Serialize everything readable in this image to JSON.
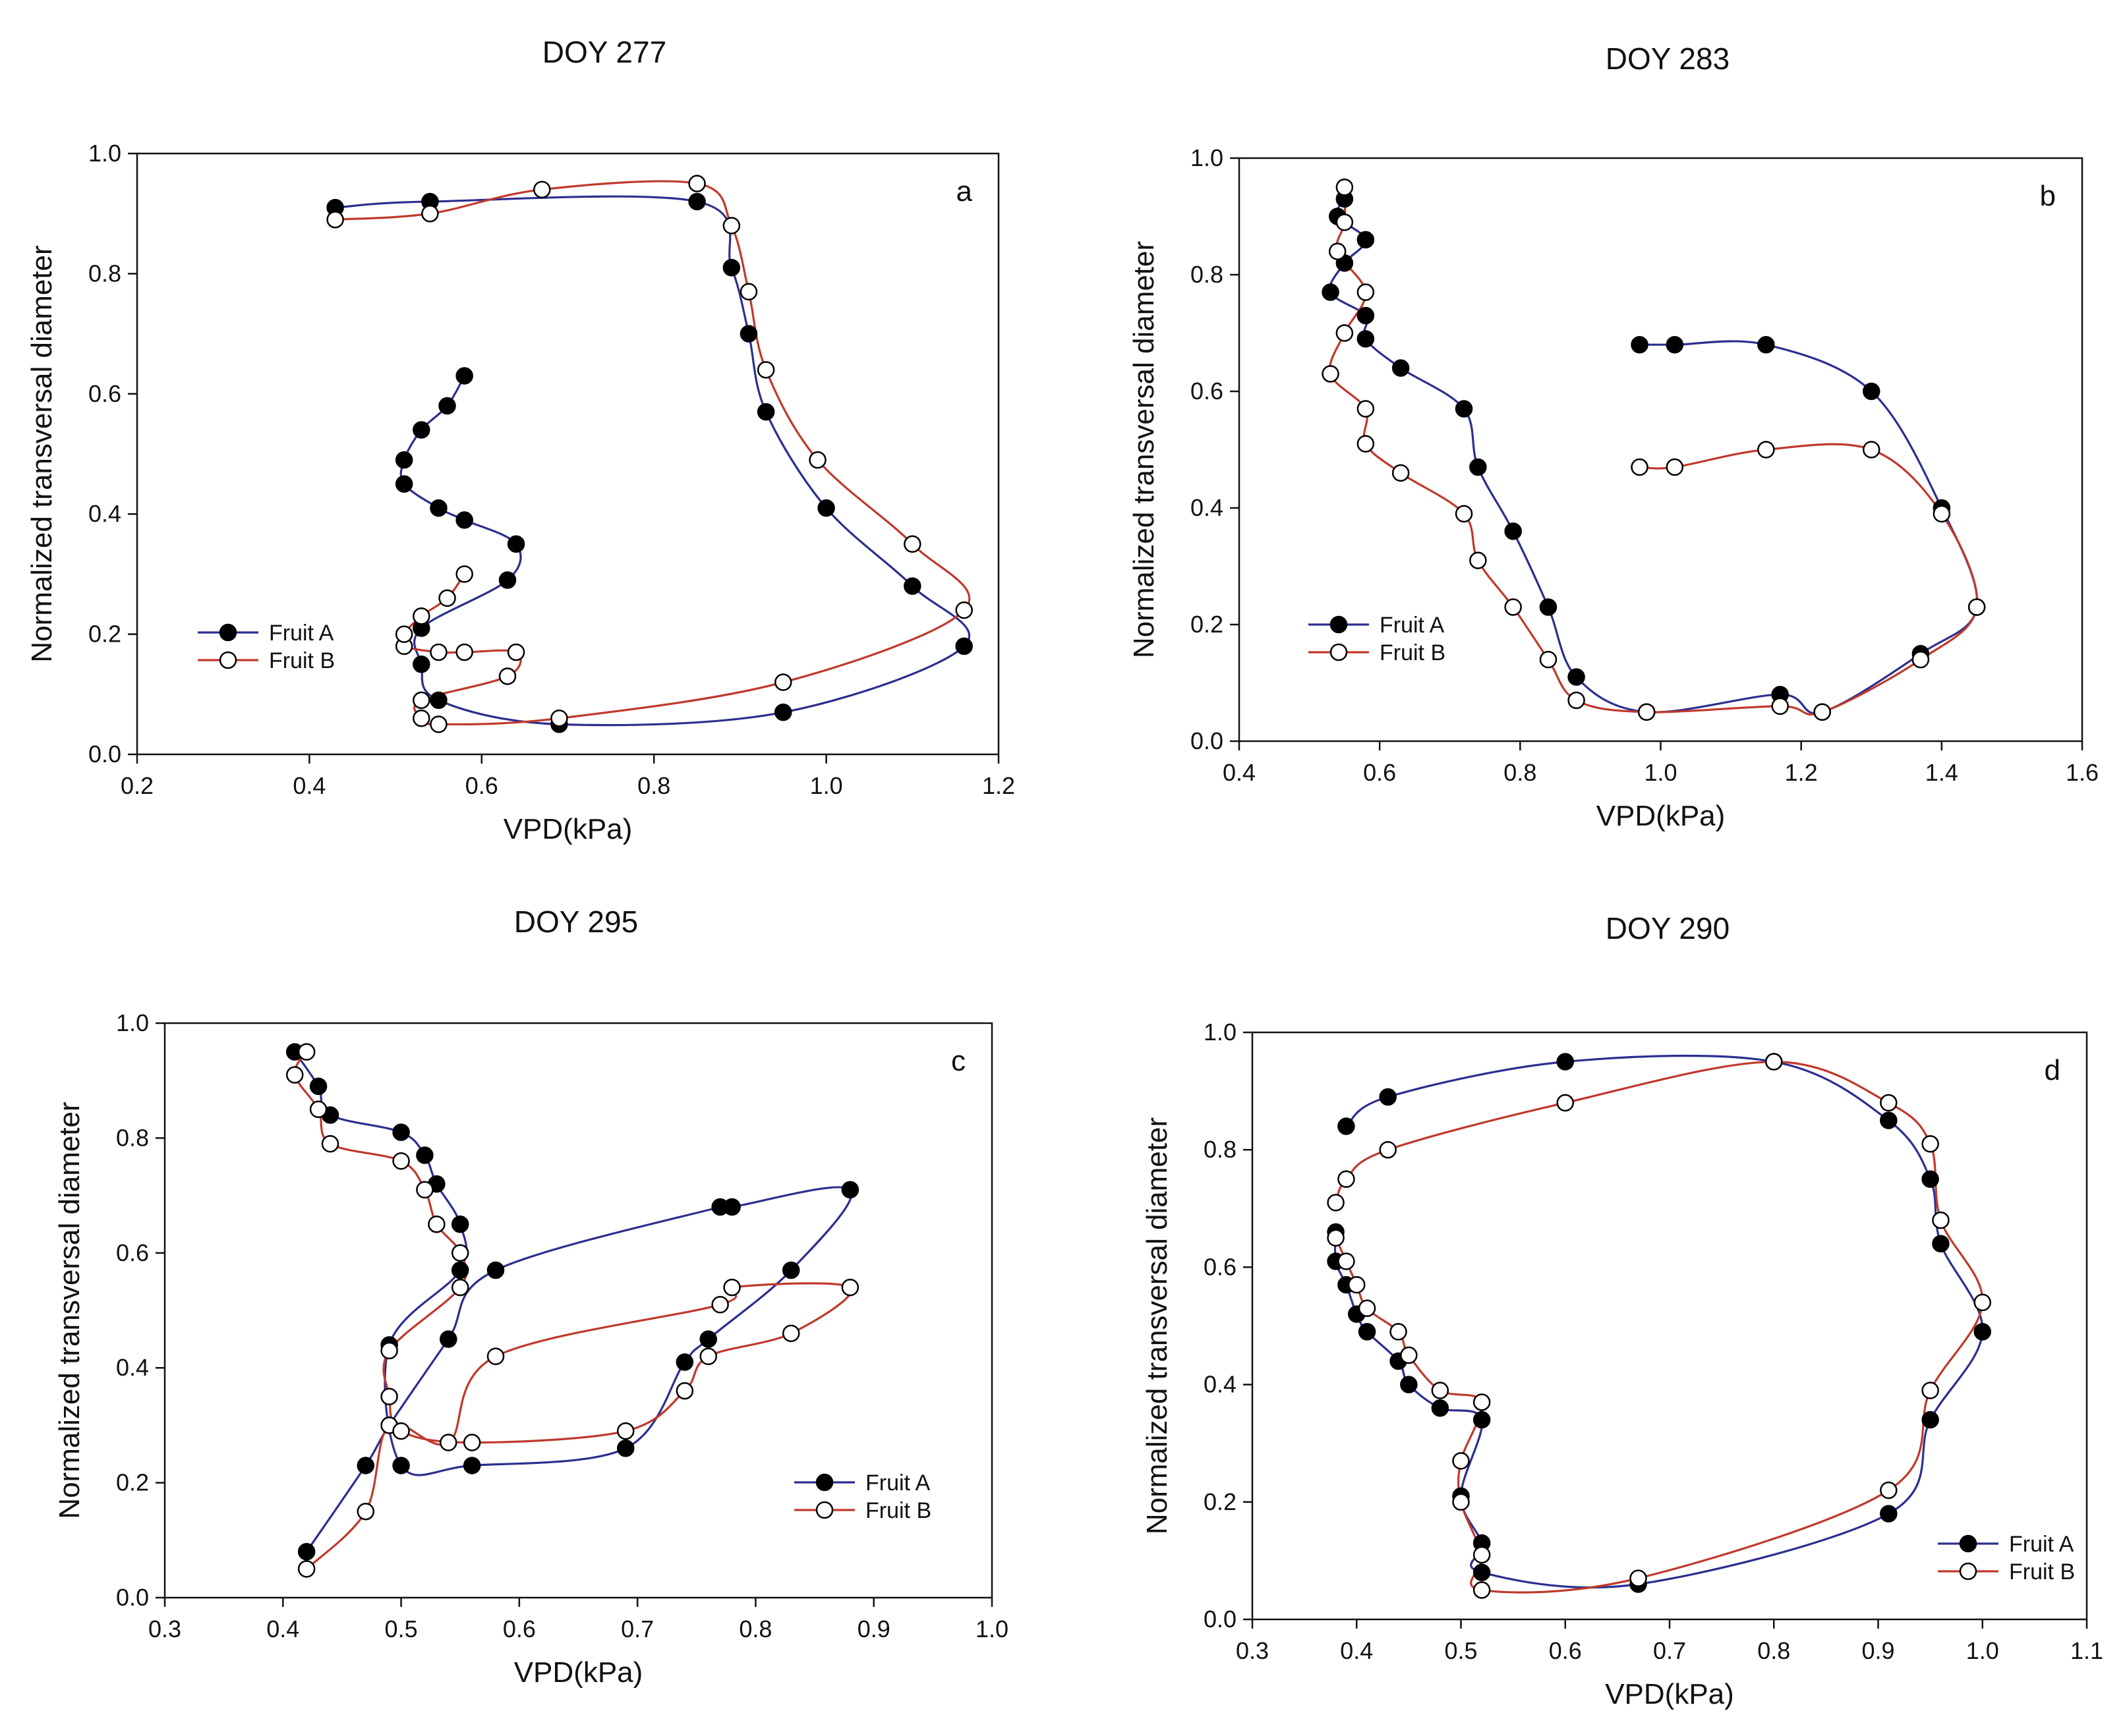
{
  "chart_data": [
    {
      "type": "line",
      "panel": "a",
      "title": "DOY 277",
      "xlabel": "VPD(kPa)",
      "ylabel": "Normalized transversal diameter",
      "xlim": [
        0.2,
        1.2
      ],
      "ylim": [
        0.0,
        1.0
      ],
      "xticks": [
        "0.2",
        "0.4",
        "0.6",
        "0.8",
        "1.0",
        "1.2"
      ],
      "yticks": [
        "0.0",
        "0.2",
        "0.4",
        "0.6",
        "0.8",
        "1.0"
      ],
      "legend_position": "left",
      "series": [
        {
          "name": "Fruit A",
          "color": "#2b2f8f",
          "marker": "filled",
          "x": [
            0.43,
            0.54,
            0.85,
            0.89,
            0.91,
            0.93,
            1.0,
            1.1,
            1.16,
            0.95,
            0.69,
            0.55,
            0.53,
            0.53,
            0.63,
            0.64,
            0.58,
            0.55,
            0.51,
            0.51,
            0.53,
            0.56,
            0.58
          ],
          "y": [
            0.91,
            0.92,
            0.92,
            0.81,
            0.7,
            0.57,
            0.41,
            0.28,
            0.18,
            0.07,
            0.05,
            0.09,
            0.15,
            0.21,
            0.29,
            0.35,
            0.39,
            0.41,
            0.45,
            0.49,
            0.54,
            0.58,
            0.63
          ]
        },
        {
          "name": "Fruit B",
          "color": "#c0392b",
          "marker": "open",
          "x": [
            0.43,
            0.54,
            0.67,
            0.85,
            0.89,
            0.91,
            0.93,
            0.99,
            1.1,
            1.16,
            0.95,
            0.69,
            0.55,
            0.53,
            0.53,
            0.63,
            0.64,
            0.58,
            0.55,
            0.51,
            0.51,
            0.53,
            0.56,
            0.58
          ],
          "y": [
            0.89,
            0.9,
            0.94,
            0.95,
            0.88,
            0.77,
            0.64,
            0.49,
            0.35,
            0.24,
            0.12,
            0.06,
            0.05,
            0.06,
            0.09,
            0.13,
            0.17,
            0.17,
            0.17,
            0.18,
            0.2,
            0.23,
            0.26,
            0.3
          ]
        }
      ]
    },
    {
      "type": "line",
      "panel": "b",
      "title": "DOY 283",
      "xlabel": "VPD(kPa)",
      "ylabel": "Normalized transversal diameter",
      "xlim": [
        0.4,
        1.6
      ],
      "ylim": [
        0.0,
        1.0
      ],
      "xticks": [
        "0.4",
        "0.6",
        "0.8",
        "1.0",
        "1.2",
        "1.4",
        "1.6"
      ],
      "yticks": [
        "0.0",
        "0.2",
        "0.4",
        "0.6",
        "0.8",
        "1.0"
      ],
      "legend_position": "left",
      "series": [
        {
          "name": "Fruit A",
          "color": "#2b2f8f",
          "marker": "filled",
          "x": [
            0.97,
            1.02,
            1.15,
            1.3,
            1.4,
            1.45,
            1.37,
            1.23,
            1.17,
            0.98,
            0.88,
            0.84,
            0.79,
            0.74,
            0.72,
            0.63,
            0.58,
            0.58,
            0.53,
            0.55,
            0.58,
            0.54,
            0.55
          ],
          "y": [
            0.68,
            0.68,
            0.68,
            0.6,
            0.4,
            0.23,
            0.15,
            0.05,
            0.08,
            0.05,
            0.11,
            0.23,
            0.36,
            0.47,
            0.57,
            0.64,
            0.69,
            0.73,
            0.77,
            0.82,
            0.86,
            0.9,
            0.93
          ]
        },
        {
          "name": "Fruit B",
          "color": "#c0392b",
          "marker": "open",
          "x": [
            0.97,
            1.02,
            1.15,
            1.3,
            1.4,
            1.45,
            1.37,
            1.23,
            1.17,
            0.98,
            0.88,
            0.84,
            0.79,
            0.74,
            0.72,
            0.63,
            0.58,
            0.58,
            0.53,
            0.55,
            0.58,
            0.54,
            0.55,
            0.55
          ],
          "y": [
            0.47,
            0.47,
            0.5,
            0.5,
            0.39,
            0.23,
            0.14,
            0.05,
            0.06,
            0.05,
            0.07,
            0.14,
            0.23,
            0.31,
            0.39,
            0.46,
            0.51,
            0.57,
            0.63,
            0.7,
            0.77,
            0.84,
            0.89,
            0.95
          ]
        }
      ]
    },
    {
      "type": "line",
      "panel": "c",
      "title": "DOY 295",
      "xlabel": "VPD(kPa)",
      "ylabel": "Normalized transversal diameter",
      "xlim": [
        0.3,
        1.0
      ],
      "ylim": [
        0.0,
        1.0
      ],
      "xticks": [
        "0.3",
        "0.4",
        "0.5",
        "0.6",
        "0.7",
        "0.8",
        "0.9",
        "1.0"
      ],
      "yticks": [
        "0.0",
        "0.2",
        "0.4",
        "0.6",
        "0.8",
        "1.0"
      ],
      "legend_position": "bottom-right",
      "series": [
        {
          "name": "Fruit A",
          "color": "#2b2f8f",
          "marker": "filled",
          "x": [
            0.42,
            0.47,
            0.49,
            0.54,
            0.58,
            0.77,
            0.78,
            0.88,
            0.83,
            0.76,
            0.74,
            0.69,
            0.56,
            0.5,
            0.49,
            0.55,
            0.55,
            0.53,
            0.52,
            0.5,
            0.44,
            0.43,
            0.41
          ],
          "y": [
            0.08,
            0.23,
            0.3,
            0.45,
            0.57,
            0.68,
            0.68,
            0.71,
            0.57,
            0.45,
            0.41,
            0.26,
            0.23,
            0.23,
            0.44,
            0.57,
            0.65,
            0.72,
            0.77,
            0.81,
            0.84,
            0.89,
            0.95
          ]
        },
        {
          "name": "Fruit B",
          "color": "#c0392b",
          "marker": "open",
          "x": [
            0.42,
            0.47,
            0.49,
            0.54,
            0.58,
            0.77,
            0.78,
            0.88,
            0.83,
            0.76,
            0.74,
            0.69,
            0.56,
            0.5,
            0.49,
            0.49,
            0.55,
            0.55,
            0.53,
            0.52,
            0.5,
            0.44,
            0.43,
            0.41,
            0.42
          ],
          "y": [
            0.05,
            0.15,
            0.3,
            0.27,
            0.42,
            0.51,
            0.54,
            0.54,
            0.46,
            0.42,
            0.36,
            0.29,
            0.27,
            0.29,
            0.35,
            0.43,
            0.54,
            0.6,
            0.65,
            0.71,
            0.76,
            0.79,
            0.85,
            0.91,
            0.95
          ]
        }
      ]
    },
    {
      "type": "line",
      "panel": "d",
      "title": "DOY 290",
      "xlabel": "VPD(kPa)",
      "ylabel": "Normalized transversal diameter",
      "xlim": [
        0.3,
        1.1
      ],
      "ylim": [
        0.0,
        1.0
      ],
      "xticks": [
        "0.3",
        "0.4",
        "0.5",
        "0.6",
        "0.7",
        "0.8",
        "0.9",
        "1.0",
        "1.1"
      ],
      "yticks": [
        "0.0",
        "0.2",
        "0.4",
        "0.6",
        "0.8",
        "1.0"
      ],
      "legend_position": "bottom-right",
      "series": [
        {
          "name": "Fruit A",
          "color": "#2b2f8f",
          "marker": "filled",
          "x": [
            0.39,
            0.43,
            0.6,
            0.8,
            0.91,
            0.95,
            0.96,
            1.0,
            0.95,
            0.91,
            0.67,
            0.52,
            0.52,
            0.5,
            0.52,
            0.48,
            0.45,
            0.44,
            0.41,
            0.4,
            0.39,
            0.38,
            0.38
          ],
          "y": [
            0.84,
            0.89,
            0.95,
            0.95,
            0.85,
            0.75,
            0.64,
            0.49,
            0.34,
            0.18,
            0.06,
            0.08,
            0.13,
            0.21,
            0.34,
            0.36,
            0.4,
            0.44,
            0.49,
            0.52,
            0.57,
            0.61,
            0.66
          ]
        },
        {
          "name": "Fruit B",
          "color": "#c0392b",
          "marker": "open",
          "x": [
            0.38,
            0.39,
            0.43,
            0.6,
            0.8,
            0.91,
            0.95,
            0.96,
            1.0,
            0.95,
            0.91,
            0.67,
            0.52,
            0.52,
            0.5,
            0.5,
            0.52,
            0.48,
            0.45,
            0.44,
            0.41,
            0.4,
            0.39,
            0.38
          ],
          "y": [
            0.71,
            0.75,
            0.8,
            0.88,
            0.95,
            0.88,
            0.81,
            0.68,
            0.54,
            0.39,
            0.22,
            0.07,
            0.05,
            0.11,
            0.2,
            0.27,
            0.37,
            0.39,
            0.45,
            0.49,
            0.53,
            0.57,
            0.61,
            0.65
          ]
        }
      ]
    }
  ]
}
